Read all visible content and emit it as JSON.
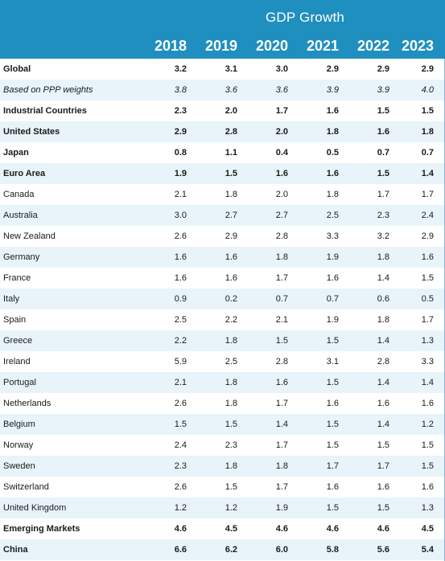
{
  "header": {
    "title": "GDP Growth",
    "years": [
      "2018",
      "2019",
      "2020",
      "2021",
      "2022",
      "2023"
    ]
  },
  "rows": [
    {
      "label": "Global",
      "values": [
        "3.2",
        "3.1",
        "3.0",
        "2.9",
        "2.9",
        "2.9"
      ],
      "style": "bold"
    },
    {
      "label": "Based on PPP weights",
      "values": [
        "3.8",
        "3.6",
        "3.6",
        "3.9",
        "3.9",
        "4.0"
      ],
      "style": "italic"
    },
    {
      "label": "Industrial Countries",
      "values": [
        "2.3",
        "2.0",
        "1.7",
        "1.6",
        "1.5",
        "1.5"
      ],
      "style": "bold"
    },
    {
      "label": "United States",
      "values": [
        "2.9",
        "2.8",
        "2.0",
        "1.8",
        "1.6",
        "1.8"
      ],
      "style": "bold"
    },
    {
      "label": "Japan",
      "values": [
        "0.8",
        "1.1",
        "0.4",
        "0.5",
        "0.7",
        "0.7"
      ],
      "style": "bold"
    },
    {
      "label": "Euro Area",
      "values": [
        "1.9",
        "1.5",
        "1.6",
        "1.6",
        "1.5",
        "1.4"
      ],
      "style": "bold"
    },
    {
      "label": "Canada",
      "values": [
        "2.1",
        "1.8",
        "2.0",
        "1.8",
        "1.7",
        "1.7"
      ],
      "style": "normal"
    },
    {
      "label": "Australia",
      "values": [
        "3.0",
        "2.7",
        "2.7",
        "2.5",
        "2.3",
        "2.4"
      ],
      "style": "normal"
    },
    {
      "label": "New Zealand",
      "values": [
        "2.6",
        "2.9",
        "2.8",
        "3.3",
        "3.2",
        "2.9"
      ],
      "style": "normal"
    },
    {
      "label": "Germany",
      "values": [
        "1.6",
        "1.6",
        "1.8",
        "1.9",
        "1.8",
        "1.6"
      ],
      "style": "normal"
    },
    {
      "label": "France",
      "values": [
        "1.6",
        "1.6",
        "1.7",
        "1.6",
        "1.4",
        "1.5"
      ],
      "style": "normal"
    },
    {
      "label": "Italy",
      "values": [
        "0.9",
        "0.2",
        "0.7",
        "0.7",
        "0.6",
        "0.5"
      ],
      "style": "normal"
    },
    {
      "label": "Spain",
      "values": [
        "2.5",
        "2.2",
        "2.1",
        "1.9",
        "1.8",
        "1.7"
      ],
      "style": "normal"
    },
    {
      "label": "Greece",
      "values": [
        "2.2",
        "1.8",
        "1.5",
        "1.5",
        "1.4",
        "1.3"
      ],
      "style": "normal"
    },
    {
      "label": "Ireland",
      "values": [
        "5.9",
        "2.5",
        "2.8",
        "3.1",
        "2.8",
        "3.3"
      ],
      "style": "normal"
    },
    {
      "label": "Portugal",
      "values": [
        "2.1",
        "1.8",
        "1.6",
        "1.5",
        "1.4",
        "1.4"
      ],
      "style": "normal"
    },
    {
      "label": "Netherlands",
      "values": [
        "2.6",
        "1.8",
        "1.7",
        "1.6",
        "1.6",
        "1.6"
      ],
      "style": "normal"
    },
    {
      "label": "Belgium",
      "values": [
        "1.5",
        "1.5",
        "1.4",
        "1.5",
        "1.4",
        "1.2"
      ],
      "style": "normal"
    },
    {
      "label": "Norway",
      "values": [
        "2.4",
        "2.3",
        "1.7",
        "1.5",
        "1.5",
        "1.5"
      ],
      "style": "normal"
    },
    {
      "label": "Sweden",
      "values": [
        "2.3",
        "1.8",
        "1.8",
        "1.7",
        "1.7",
        "1.5"
      ],
      "style": "normal"
    },
    {
      "label": "Switzerland",
      "values": [
        "2.6",
        "1.5",
        "1.7",
        "1.6",
        "1.6",
        "1.6"
      ],
      "style": "normal"
    },
    {
      "label": "United Kingdom",
      "values": [
        "1.2",
        "1.2",
        "1.9",
        "1.5",
        "1.5",
        "1.3"
      ],
      "style": "normal"
    },
    {
      "label": "Emerging Markets",
      "values": [
        "4.6",
        "4.5",
        "4.6",
        "4.6",
        "4.6",
        "4.5"
      ],
      "style": "bold"
    },
    {
      "label": "China",
      "values": [
        "6.6",
        "6.2",
        "6.0",
        "5.8",
        "5.6",
        "5.4"
      ],
      "style": "bold"
    }
  ],
  "colors": {
    "header_bg": "#1f8fbf",
    "stripe": "#e8f4fa"
  }
}
